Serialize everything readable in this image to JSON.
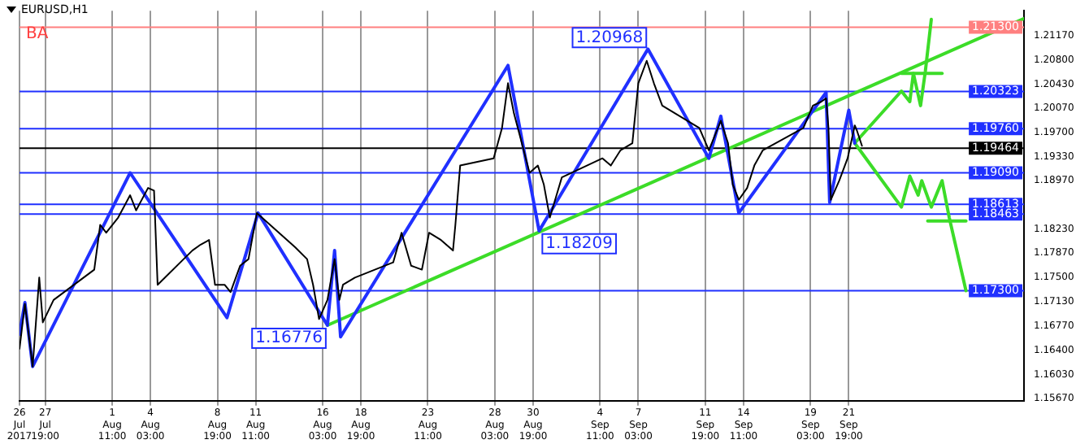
{
  "chart_data": {
    "type": "line",
    "title": "EURUSD,H1",
    "annotations": [
      "BA",
      {
        "text": "1.20968",
        "x": "2017-09-07T19:00",
        "y": 1.20968
      },
      {
        "text": "1.18209",
        "x": "2017-08-31T05:00",
        "y": 1.18209
      },
      {
        "text": "1.16776",
        "x": "2017-08-16T11:00",
        "y": 1.16776
      }
    ],
    "xlim": [
      "2017-07-26T00:00",
      "2017-10-04T00:00"
    ],
    "xticks": [
      {
        "value": "2017-07-26T00:00",
        "label": "26 Jul 2017"
      },
      {
        "value": "2017-07-27T19:00",
        "label": "27 Jul 19:00"
      },
      {
        "value": "2017-08-01T11:00",
        "label": "1 Aug 11:00"
      },
      {
        "value": "2017-08-04T03:00",
        "label": "4 Aug 03:00"
      },
      {
        "value": "2017-08-08T19:00",
        "label": "8 Aug 19:00"
      },
      {
        "value": "2017-08-11T11:00",
        "label": "11 Aug 11:00"
      },
      {
        "value": "2017-08-16T03:00",
        "label": "16 Aug 03:00"
      },
      {
        "value": "2017-08-18T19:00",
        "label": "18 Aug 19:00"
      },
      {
        "value": "2017-08-23T11:00",
        "label": "23 Aug 11:00"
      },
      {
        "value": "2017-08-28T03:00",
        "label": "28 Aug 03:00"
      },
      {
        "value": "2017-08-30T19:00",
        "label": "30 Aug 19:00"
      },
      {
        "value": "2017-09-04T11:00",
        "label": "4 Sep 11:00"
      },
      {
        "value": "2017-09-07T03:00",
        "label": "7 Sep 03:00"
      },
      {
        "value": "2017-09-11T19:00",
        "label": "11 Sep 19:00"
      },
      {
        "value": "2017-09-14T11:00",
        "label": "14 Sep 11:00"
      },
      {
        "value": "2017-09-19T03:00",
        "label": "19 Sep 03:00"
      },
      {
        "value": "2017-09-21T19:00",
        "label": "21 Sep 19:00"
      }
    ],
    "ylim": [
      1.1563,
      1.2155
    ],
    "yticks": [
      {
        "value": 1.2117,
        "label": "1.21170"
      },
      {
        "value": 1.208,
        "label": "1.20800"
      },
      {
        "value": 1.2043,
        "label": "1.20430"
      },
      {
        "value": 1.2007,
        "label": "1.20070"
      },
      {
        "value": 1.197,
        "label": "1.19700"
      },
      {
        "value": 1.1933,
        "label": "1.19330"
      },
      {
        "value": 1.1897,
        "label": "1.18970"
      },
      {
        "value": 1.1823,
        "label": "1.18230"
      },
      {
        "value": 1.1787,
        "label": "1.17870"
      },
      {
        "value": 1.175,
        "label": "1.17500"
      },
      {
        "value": 1.1713,
        "label": "1.17130"
      },
      {
        "value": 1.1677,
        "label": "1.16770"
      },
      {
        "value": 1.164,
        "label": "1.16400"
      },
      {
        "value": 1.1603,
        "label": "1.16030"
      },
      {
        "value": 1.1567,
        "label": "1.15670"
      }
    ],
    "grid": "x",
    "legend": false,
    "marker": "none",
    "line_style": "solid",
    "ref_lines": [
      {
        "axis": "y",
        "value": 1.213,
        "label": "1.21300",
        "color": "#ff8080"
      },
      {
        "axis": "y",
        "value": 1.20323,
        "label": "1.20323",
        "color": "#2030ff"
      },
      {
        "axis": "y",
        "value": 1.1976,
        "label": "1.19760",
        "color": "#2030ff"
      },
      {
        "axis": "y",
        "value": 1.19464,
        "label": "1.19464",
        "color": "#000000"
      },
      {
        "axis": "y",
        "value": 1.1909,
        "label": "1.19090",
        "color": "#2030ff"
      },
      {
        "axis": "y",
        "value": 1.18613,
        "label": "1.18613",
        "color": "#2030ff"
      },
      {
        "axis": "y",
        "value": 1.18463,
        "label": "1.18463",
        "color": "#2030ff"
      },
      {
        "axis": "y",
        "value": 1.173,
        "label": "1.17300",
        "color": "#2030ff"
      }
    ],
    "series": [
      {
        "color": "#000000",
        "x": [
          "2017-07-26T00:00",
          "2017-07-26T09:00",
          "2017-07-26T22:00",
          "2017-07-27T09:00",
          "2017-07-27T15:00",
          "2017-07-28T09:00",
          "2017-07-31T05:00",
          "2017-07-31T15:00",
          "2017-08-01T01:00",
          "2017-08-01T21:00",
          "2017-08-02T17:00",
          "2017-08-03T03:00",
          "2017-08-03T23:00",
          "2017-08-04T09:00",
          "2017-08-04T15:00",
          "2017-08-07T01:00",
          "2017-08-07T15:00",
          "2017-08-08T05:00",
          "2017-08-08T15:00",
          "2017-08-09T07:00",
          "2017-08-09T17:00",
          "2017-08-10T09:00",
          "2017-08-10T23:00",
          "2017-08-11T13:00",
          "2017-08-14T05:00",
          "2017-08-15T01:00",
          "2017-08-15T11:00",
          "2017-08-15T21:00",
          "2017-08-16T11:00",
          "2017-08-16T23:00",
          "2017-08-17T07:00",
          "2017-08-17T13:00",
          "2017-08-18T09:00",
          "2017-08-21T01:00",
          "2017-08-21T15:00",
          "2017-08-22T07:00",
          "2017-08-23T01:00",
          "2017-08-23T13:00",
          "2017-08-24T09:00",
          "2017-08-25T05:00",
          "2017-08-25T09:00",
          "2017-08-25T17:00",
          "2017-08-28T01:00",
          "2017-08-28T15:00",
          "2017-08-29T01:00",
          "2017-08-29T11:00",
          "2017-08-29T21:00",
          "2017-08-30T13:00",
          "2017-08-31T03:00",
          "2017-08-31T13:00",
          "2017-08-31T23:00",
          "2017-09-01T19:00",
          "2017-09-04T15:00",
          "2017-09-05T05:00",
          "2017-09-05T21:00",
          "2017-09-06T17:00",
          "2017-09-07T03:00",
          "2017-09-07T17:00",
          "2017-09-08T05:00",
          "2017-09-08T19:00",
          "2017-09-11T09:00",
          "2017-09-12T01:00",
          "2017-09-12T21:00",
          "2017-09-13T09:00",
          "2017-09-13T17:00",
          "2017-09-14T03:00",
          "2017-09-14T17:00",
          "2017-09-15T05:00",
          "2017-09-15T19:00",
          "2017-09-18T15:00",
          "2017-09-19T07:00",
          "2017-09-19T21:00",
          "2017-09-20T05:00",
          "2017-09-20T09:00",
          "2017-09-20T13:00",
          "2017-09-21T03:00",
          "2017-09-21T17:00",
          "2017-09-22T05:00",
          "2017-09-22T09:00",
          "2017-09-22T17:00"
        ],
        "values": [
          1.1642,
          1.171,
          1.1615,
          1.175,
          1.1682,
          1.1716,
          1.1762,
          1.183,
          1.1818,
          1.1841,
          1.1875,
          1.1852,
          1.1886,
          1.1882,
          1.1739,
          1.1791,
          1.18,
          1.1807,
          1.1739,
          1.1739,
          1.1728,
          1.1768,
          1.1778,
          1.1848,
          1.1796,
          1.1778,
          1.1739,
          1.1687,
          1.1716,
          1.1778,
          1.1716,
          1.1739,
          1.175,
          1.1773,
          1.1818,
          1.1768,
          1.1762,
          1.1818,
          1.1807,
          1.1791,
          1.183,
          1.192,
          1.1931,
          1.1977,
          1.2045,
          1.1999,
          1.1965,
          1.1909,
          1.192,
          1.1891,
          1.1841,
          1.1902,
          1.1931,
          1.192,
          1.1943,
          1.1954,
          1.2045,
          1.2079,
          1.2045,
          1.2011,
          1.1977,
          1.1943,
          1.1988,
          1.1954,
          1.1891,
          1.1868,
          1.1886,
          1.192,
          1.1943,
          1.1977,
          1.2011,
          1.2017,
          1.2022,
          1.1977,
          1.1868,
          1.1897,
          1.1931,
          1.1981,
          1.1972,
          1.195
        ]
      },
      {
        "color": "#2030ff",
        "x": [
          "2017-07-26T00:00",
          "2017-07-26T09:00",
          "2017-07-26T22:00",
          "2017-08-02T17:00",
          "2017-08-09T11:00",
          "2017-08-11T15:00",
          "2017-08-16T11:00",
          "2017-08-16T23:00",
          "2017-08-17T09:00",
          "2017-08-29T01:00",
          "2017-08-31T05:00",
          "2017-09-07T19:00",
          "2017-09-12T01:00",
          "2017-09-12T21:00",
          "2017-09-14T03:00",
          "2017-09-20T05:00",
          "2017-09-20T11:00",
          "2017-09-21T19:00",
          "2017-09-22T05:00"
        ],
        "values": [
          1.1664,
          1.1712,
          1.1615,
          1.1909,
          1.1689,
          1.1848,
          1.16776,
          1.1791,
          1.166,
          1.2072,
          1.18209,
          1.20968,
          1.1931,
          1.1995,
          1.1848,
          1.2031,
          1.1864,
          1.2004,
          1.1954
        ]
      },
      {
        "color": "#3cdc28",
        "x": [
          "2017-08-16T11:00",
          "2017-10-04T00:00"
        ],
        "values": [
          1.16776,
          1.2143
        ]
      },
      {
        "color": "#3cdc28",
        "x": [
          "2017-09-22T05:00",
          "2017-09-25T11:00",
          "2017-09-26T01:00",
          "2017-09-26T07:00",
          "2017-09-26T19:00",
          "2017-09-27T03:00",
          "2017-09-27T13:00"
        ],
        "values": [
          1.1954,
          1.2033,
          1.2017,
          1.206,
          1.2011,
          1.2063,
          1.2142
        ]
      },
      {
        "color": "#3cdc28",
        "x": [
          "2017-09-25T11:00",
          "2017-09-28T07:00"
        ],
        "values": [
          1.206,
          1.206
        ]
      },
      {
        "color": "#3cdc28",
        "x": [
          "2017-09-22T05:00",
          "2017-09-25T11:00",
          "2017-09-26T01:00",
          "2017-09-26T15:00",
          "2017-09-26T21:00",
          "2017-09-27T13:00",
          "2017-09-28T07:00",
          "2017-09-28T19:00",
          "2017-09-29T23:00"
        ],
        "values": [
          1.1954,
          1.1857,
          1.1904,
          1.1875,
          1.1897,
          1.1857,
          1.1897,
          1.1841,
          1.173
        ]
      },
      {
        "color": "#3cdc28",
        "x": [
          "2017-09-27T07:00",
          "2017-09-29T23:00"
        ],
        "values": [
          1.1836,
          1.1836
        ]
      }
    ]
  }
}
